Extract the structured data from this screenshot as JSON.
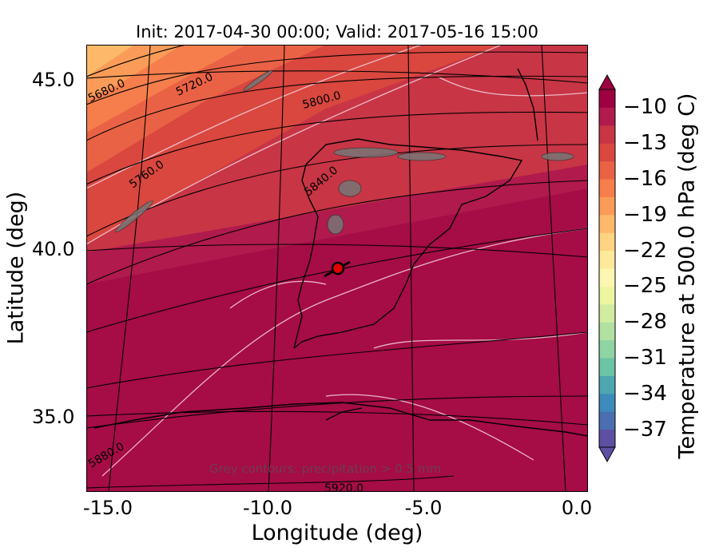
{
  "title": "Init: 2017-04-30 00:00; Valid: 2017-05-16 15:00",
  "map": {
    "xlabel": "Longitude (deg)",
    "ylabel": "Latitude (deg)",
    "x_ticks": [
      "-15.0",
      "-10.0",
      "-5.0",
      "0.0"
    ],
    "y_ticks": [
      "45.0",
      "40.0",
      "35.0"
    ],
    "lon_range": [
      -16,
      0
    ],
    "lat_range": [
      32.7,
      46
    ],
    "note": "Grey contours: precipitation > 0.5 mm",
    "marker": {
      "lon": -7.6,
      "lat": 39.3,
      "color": "#e00000"
    },
    "height_contours": [
      "5680.0",
      "5720.0",
      "5760.0",
      "5800.0",
      "5840.0",
      "5880.0",
      "5920.0"
    ]
  },
  "colorbar": {
    "label": "Temperature at 500.0 hPa (deg C)",
    "ticks": [
      "−10",
      "−13",
      "−16",
      "−19",
      "−22",
      "−25",
      "−28",
      "−31",
      "−34",
      "−37"
    ],
    "min": -38.5,
    "max": -8.5,
    "colors": [
      "#5e4fa2",
      "#4a6eb0",
      "#3d8bba",
      "#4ca7b1",
      "#6bc4a4",
      "#8fd4a3",
      "#b2e0a1",
      "#d1ec9e",
      "#ecf6a0",
      "#fbf7b0",
      "#fee89a",
      "#fed381",
      "#fdb969",
      "#fa9c58",
      "#f57e4c",
      "#ea6245",
      "#d9473f",
      "#c83545",
      "#b01a4d",
      "#9e0142"
    ]
  }
}
